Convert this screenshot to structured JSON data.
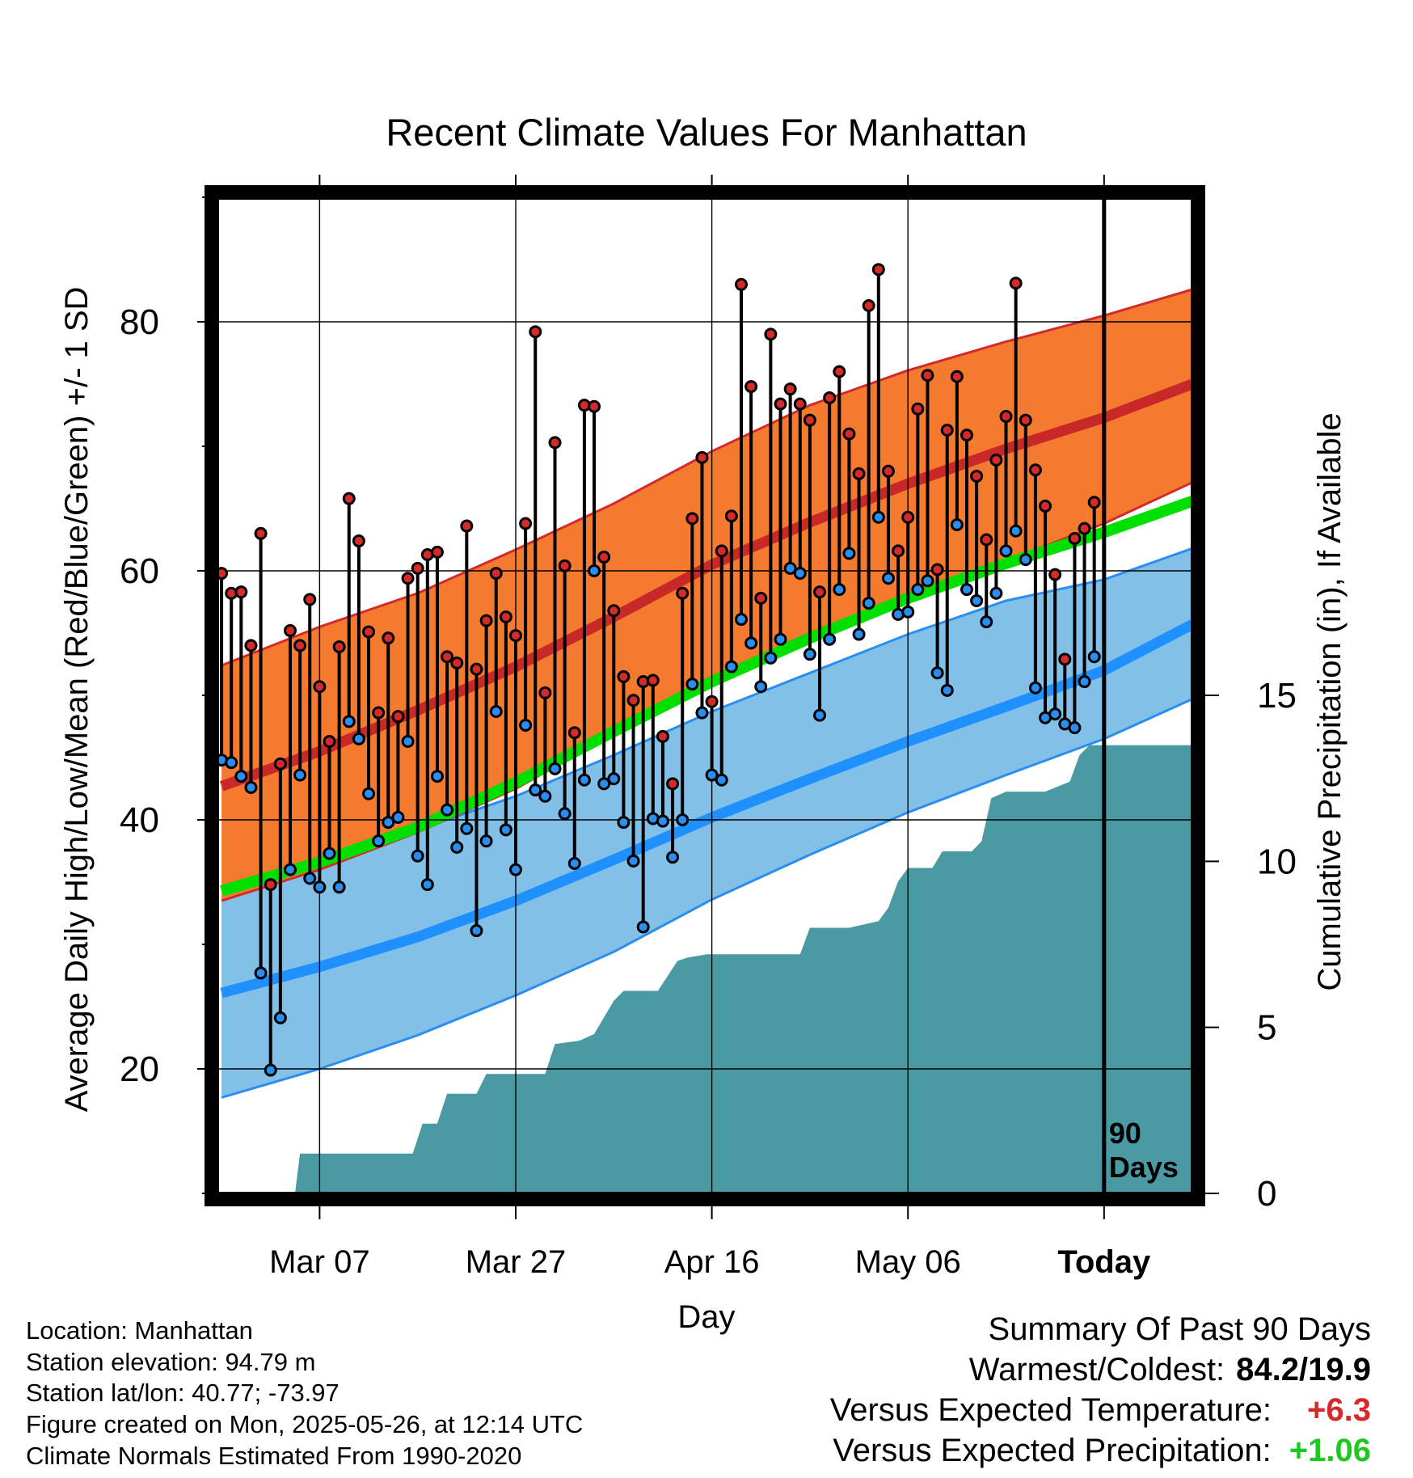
{
  "chart_data": {
    "type": "line",
    "title": "Recent Climate Values For Manhattan",
    "xlabel": "Day",
    "ylabel_left": "Average Daily High/Low/Mean (Red/Blue/Green) +/- 1 SD",
    "ylabel_right": "Cumulative Precipitation (in), If Available",
    "x_ticks": [
      "Mar 07",
      "Mar 27",
      "Apr 16",
      "May 06",
      "Today"
    ],
    "x_tick_days": [
      10,
      30,
      50,
      70,
      90
    ],
    "left_ylim": [
      10,
      90
    ],
    "left_ticks": [
      20,
      40,
      60,
      80
    ],
    "right_ylim": [
      0,
      30
    ],
    "right_ticks": [
      0,
      5,
      10,
      15
    ],
    "today_day": 90,
    "today_label_lines": [
      "90",
      "Days"
    ],
    "xlim": [
      -0.5,
      99
    ],
    "colors": {
      "high_band": "#f47a30",
      "high_edge": "#d42a2a",
      "high_mean": "#c82828",
      "low_band": "#82c0e8",
      "low_edge": "#2a8ef0",
      "low_mean": "#1e90ff",
      "mean": "#00e000",
      "precip": "#4a9aa4",
      "high_dot": "#d42a2a",
      "low_dot": "#2a8ef0"
    },
    "normals": {
      "days": [
        0,
        10,
        20,
        30,
        40,
        50,
        60,
        70,
        80,
        90,
        99
      ],
      "high_mean": [
        42.7,
        45.5,
        48.8,
        52.3,
        56.3,
        60.5,
        63.9,
        67.0,
        69.8,
        72.3,
        75.0
      ],
      "high_upper": [
        52.4,
        55.5,
        58.2,
        61.7,
        65.4,
        69.6,
        73.3,
        76.1,
        78.4,
        80.5,
        82.6
      ],
      "high_lower": [
        33.5,
        36.0,
        39.0,
        42.5,
        46.9,
        51.4,
        55.0,
        58.1,
        60.8,
        63.8,
        67.1
      ],
      "mean": [
        34.3,
        36.6,
        39.4,
        43.0,
        47.1,
        51.1,
        54.6,
        57.8,
        60.6,
        63.1,
        65.6
      ],
      "low_mean": [
        26.1,
        28.2,
        30.6,
        33.5,
        36.8,
        40.2,
        43.3,
        46.3,
        49.1,
        52.0,
        55.7
      ],
      "low_upper": [
        33.6,
        36.5,
        39.2,
        41.9,
        45.2,
        48.7,
        51.8,
        54.9,
        57.6,
        59.3,
        61.8
      ],
      "low_lower": [
        17.7,
        20.0,
        22.7,
        25.9,
        29.4,
        33.6,
        37.2,
        40.6,
        43.6,
        46.5,
        49.7
      ]
    },
    "series": [
      {
        "name": "High",
        "values": [
          59.8,
          58.2,
          58.3,
          54.0,
          63.0,
          34.8,
          44.5,
          55.2,
          54.0,
          57.7,
          50.7,
          46.3,
          53.9,
          65.8,
          62.4,
          55.1,
          48.6,
          54.6,
          48.3,
          59.4,
          60.2,
          61.3,
          61.5,
          53.1,
          52.6,
          63.6,
          52.1,
          56.0,
          59.8,
          56.3,
          54.8,
          63.8,
          79.2,
          50.2,
          70.3,
          60.4,
          47.0,
          73.3,
          73.2,
          61.1,
          56.8,
          51.5,
          49.6,
          51.1,
          51.2,
          46.7,
          42.9,
          58.2,
          64.2,
          69.1,
          49.5,
          61.6,
          64.4,
          83.0,
          74.8,
          57.8,
          79.0,
          73.4,
          74.6,
          73.4,
          72.1,
          58.3,
          73.9,
          76.0,
          71.0,
          67.8,
          81.3,
          84.2,
          68.0,
          61.6,
          64.3,
          73.0,
          75.7,
          60.1,
          71.3,
          75.6,
          70.9,
          67.6,
          62.5,
          68.9,
          72.4,
          83.1,
          72.1,
          68.1,
          65.2,
          59.7,
          52.9,
          62.6,
          63.4,
          65.5
        ]
      },
      {
        "name": "Low",
        "values": [
          44.8,
          44.6,
          43.5,
          42.6,
          27.7,
          19.9,
          24.1,
          36.0,
          43.6,
          35.3,
          34.6,
          37.3,
          34.6,
          47.9,
          46.5,
          42.1,
          38.3,
          39.8,
          40.2,
          46.3,
          37.1,
          34.8,
          43.5,
          40.8,
          37.8,
          39.3,
          31.1,
          38.3,
          48.7,
          39.2,
          36.0,
          47.6,
          42.4,
          41.9,
          44.1,
          40.5,
          36.5,
          43.2,
          60.0,
          42.9,
          43.3,
          39.8,
          36.7,
          31.4,
          40.1,
          39.9,
          37.0,
          40.0,
          50.9,
          48.6,
          43.6,
          43.2,
          52.3,
          56.1,
          54.2,
          50.7,
          53.0,
          54.5,
          60.2,
          59.8,
          53.3,
          48.4,
          54.5,
          58.5,
          61.4,
          54.9,
          57.4,
          64.3,
          59.4,
          56.5,
          56.7,
          58.5,
          59.2,
          51.8,
          50.4,
          63.7,
          58.5,
          57.6,
          55.9,
          58.2,
          61.6,
          63.2,
          60.9,
          50.6,
          48.2,
          48.5,
          47.7,
          47.4,
          51.1,
          53.1
        ]
      },
      {
        "name": "Cumulative Precipitation",
        "x": [
          0,
          7.5,
          8.0,
          19.5,
          20.5,
          22.0,
          23.0,
          26.0,
          27.0,
          33.0,
          34.0,
          36.5,
          38.0,
          40.0,
          41.0,
          44.5,
          46.5,
          47.5,
          49.5,
          59.0,
          60.0,
          64.0,
          67.0,
          68.0,
          69.0,
          70.0,
          72.5,
          73.5,
          76.5,
          77.5,
          78.5,
          80.0,
          83.0,
          84.0,
          86.5,
          87.5,
          88.5,
          99.0
        ],
        "values": [
          0,
          0,
          1.2,
          1.2,
          2.1,
          2.1,
          3.0,
          3.0,
          3.6,
          3.6,
          4.5,
          4.6,
          4.8,
          5.8,
          6.1,
          6.1,
          7.0,
          7.1,
          7.2,
          7.2,
          8.0,
          8.0,
          8.2,
          8.6,
          9.4,
          9.8,
          9.8,
          10.3,
          10.3,
          10.6,
          11.9,
          12.1,
          12.1,
          12.1,
          12.4,
          13.2,
          13.5,
          13.5
        ]
      }
    ]
  },
  "footer": {
    "location": "Location: Manhattan",
    "elevation": "Station elevation: 94.79 m",
    "latlon": "Station lat/lon: 40.77; -73.97",
    "created": "Figure created on Mon, 2025-05-26, at 12:14 UTC",
    "normals": "Climate Normals Estimated From 1990-2020"
  },
  "summary": {
    "heading": "Summary Of Past 90 Days",
    "warm_cold_label": "Warmest/Coldest:",
    "warm_cold_value": "84.2/19.9",
    "temp_label": "Versus Expected Temperature:",
    "temp_value": "+6.3",
    "temp_color": "#d42a2a",
    "precip_label": "Versus Expected Precipitation:",
    "precip_value": "+1.06",
    "precip_color": "#1ec81e"
  }
}
